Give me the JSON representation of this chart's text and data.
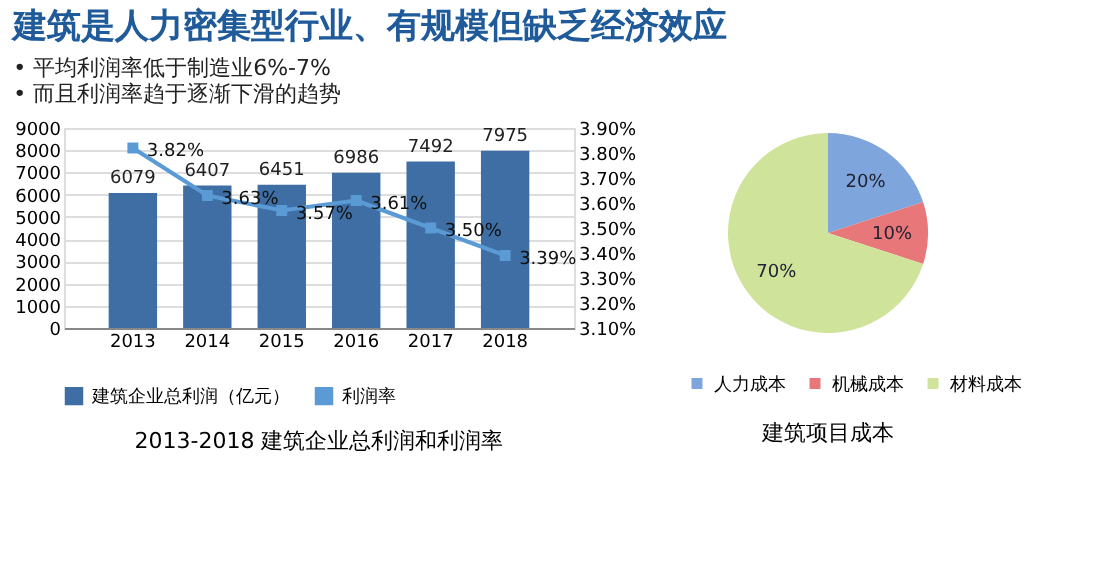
{
  "chart_data": [
    {
      "type": "bar",
      "title": "建筑是人力密集型行业、有规模但缺乏经济效应",
      "subtitle": [
        "•   平均利润率低于制造业6%-7%",
        "•   而且利润率趋于逐渐下滑的趋势"
      ],
      "categories": [
        "2013",
        "2014",
        "2015",
        "2016",
        "2017",
        "2018"
      ],
      "series": [
        {
          "name": "建筑企业总利润（亿元）",
          "type": "bar",
          "color": "#3e6ea3",
          "values": [
            6079,
            6407,
            6451,
            6986,
            7492,
            7975
          ]
        },
        {
          "name": "利润率",
          "type": "line",
          "axis": "y2",
          "color": "#5b9bd5",
          "marker": "square",
          "values": [
            3.82,
            3.63,
            3.57,
            3.61,
            3.5,
            3.39
          ],
          "value_labels": [
            "3.82%",
            "3.63%",
            "3.57%",
            "3.61%",
            "3.50%",
            "3.39%"
          ]
        }
      ],
      "data_labels": true,
      "ylim": [
        0,
        9000
      ],
      "yticks": [
        0,
        1000,
        2000,
        3000,
        4000,
        5000,
        6000,
        7000,
        8000,
        9000
      ],
      "y2lim": [
        3.1,
        3.9
      ],
      "y2ticks": [
        {
          "value": 3.1,
          "label": "3.10%"
        },
        {
          "value": 3.2,
          "label": "3.20%"
        },
        {
          "value": 3.3,
          "label": "3.30%"
        },
        {
          "value": 3.4,
          "label": "3.40%"
        },
        {
          "value": 3.5,
          "label": "3.50%"
        },
        {
          "value": 3.6,
          "label": "3.60%"
        },
        {
          "value": 3.7,
          "label": "3.70%"
        },
        {
          "value": 3.8,
          "label": "3.80%"
        },
        {
          "value": 3.9,
          "label": "3.90%"
        }
      ],
      "grid": "y",
      "legend": "bottom",
      "annotations": [
        "2013-2018 建筑企业总利润和利润率"
      ]
    },
    {
      "type": "pie",
      "categories": [
        "人力成本",
        "机械成本",
        "材料成本"
      ],
      "values": [
        20,
        10,
        70
      ],
      "colors": [
        "#7ea6dc",
        "#e8777a",
        "#cfe39a"
      ],
      "value_labels": [
        "20%",
        "10%",
        "70%"
      ],
      "legend": "bottom",
      "annotations": [
        "建筑项目成本"
      ]
    }
  ]
}
